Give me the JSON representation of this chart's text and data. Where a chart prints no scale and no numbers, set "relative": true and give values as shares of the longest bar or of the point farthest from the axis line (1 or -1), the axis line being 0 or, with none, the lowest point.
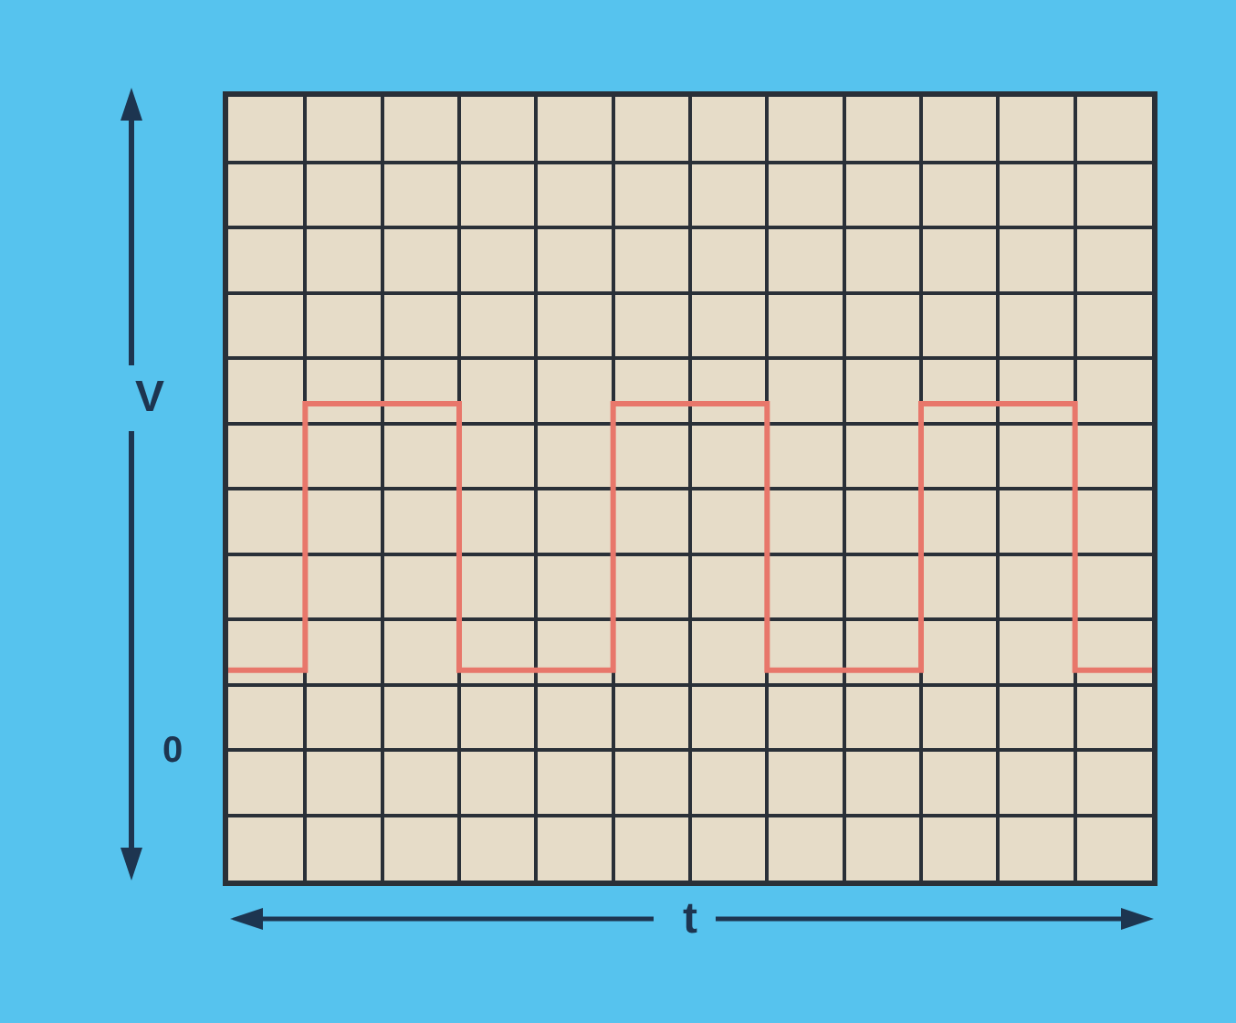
{
  "chart_data": {
    "type": "step",
    "xlabel": "t",
    "ylabel": "V",
    "relative": true,
    "categories": [
      null,
      null,
      null,
      null,
      null,
      null,
      null,
      null,
      null,
      null,
      null,
      null,
      null
    ],
    "series": [
      {
        "color": "#e8776b",
        "values": [
          0.23,
          1,
          1,
          0.23,
          0.23,
          1,
          1,
          0.23,
          0.23,
          1,
          1,
          0.23,
          0.23
        ]
      }
    ],
    "annotations": [
      "0"
    ],
    "grid": true,
    "marker": "none",
    "line_style": "solid"
  }
}
